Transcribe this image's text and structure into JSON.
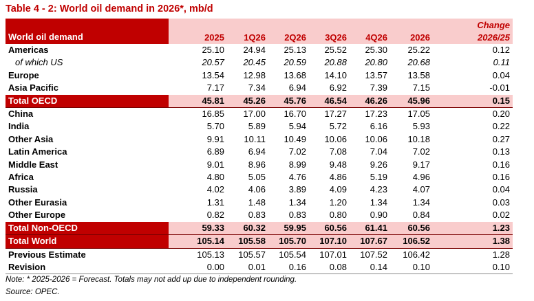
{
  "title": "Table 4 - 2: World oil demand in 2026*, mb/d",
  "table": {
    "header": [
      "World oil demand",
      "2025",
      "1Q26",
      "2Q26",
      "3Q26",
      "4Q26",
      "2026"
    ],
    "change_header": [
      "Change",
      "2026/25"
    ],
    "rows": [
      {
        "label": "Americas",
        "values": [
          "25.10",
          "24.94",
          "25.13",
          "25.52",
          "25.30",
          "25.22"
        ],
        "change": "0.12"
      },
      {
        "label": "of which US",
        "values": [
          "20.57",
          "20.45",
          "20.59",
          "20.88",
          "20.80",
          "20.68"
        ],
        "change": "0.11",
        "italic": true
      },
      {
        "label": "Europe",
        "values": [
          "13.54",
          "12.98",
          "13.68",
          "14.10",
          "13.57",
          "13.58"
        ],
        "change": "0.04"
      },
      {
        "label": "Asia Pacific",
        "values": [
          "7.17",
          "7.34",
          "6.94",
          "6.92",
          "7.39",
          "7.15"
        ],
        "change": "-0.01"
      },
      {
        "label": "Total OECD",
        "values": [
          "45.81",
          "45.26",
          "45.76",
          "46.54",
          "46.26",
          "45.96"
        ],
        "change": "0.15",
        "total": true
      },
      {
        "label": "China",
        "values": [
          "16.85",
          "17.00",
          "16.70",
          "17.27",
          "17.23",
          "17.05"
        ],
        "change": "0.20"
      },
      {
        "label": "India",
        "values": [
          "5.70",
          "5.89",
          "5.94",
          "5.72",
          "6.16",
          "5.93"
        ],
        "change": "0.22"
      },
      {
        "label": "Other Asia",
        "values": [
          "9.91",
          "10.11",
          "10.49",
          "10.06",
          "10.06",
          "10.18"
        ],
        "change": "0.27"
      },
      {
        "label": "Latin America",
        "values": [
          "6.89",
          "6.94",
          "7.02",
          "7.08",
          "7.04",
          "7.02"
        ],
        "change": "0.13"
      },
      {
        "label": "Middle East",
        "values": [
          "9.01",
          "8.96",
          "8.99",
          "9.48",
          "9.26",
          "9.17"
        ],
        "change": "0.16"
      },
      {
        "label": "Africa",
        "values": [
          "4.80",
          "5.05",
          "4.76",
          "4.86",
          "5.19",
          "4.96"
        ],
        "change": "0.16"
      },
      {
        "label": "Russia",
        "values": [
          "4.02",
          "4.06",
          "3.89",
          "4.09",
          "4.23",
          "4.07"
        ],
        "change": "0.04"
      },
      {
        "label": "Other Eurasia",
        "values": [
          "1.31",
          "1.48",
          "1.34",
          "1.20",
          "1.34",
          "1.34"
        ],
        "change": "0.03"
      },
      {
        "label": "Other Europe",
        "values": [
          "0.82",
          "0.83",
          "0.83",
          "0.80",
          "0.90",
          "0.84"
        ],
        "change": "0.02"
      },
      {
        "label": "Total Non-OECD",
        "values": [
          "59.33",
          "60.32",
          "59.95",
          "60.56",
          "61.41",
          "60.56"
        ],
        "change": "1.23",
        "total": true
      },
      {
        "label": "Total World",
        "values": [
          "105.14",
          "105.58",
          "105.70",
          "107.10",
          "107.67",
          "106.52"
        ],
        "change": "1.38",
        "total": true
      },
      {
        "label": "Previous Estimate",
        "values": [
          "105.13",
          "105.57",
          "105.54",
          "107.01",
          "107.52",
          "106.42"
        ],
        "change": "1.28"
      },
      {
        "label": "Revision",
        "values": [
          "0.00",
          "0.01",
          "0.16",
          "0.08",
          "0.14",
          "0.10"
        ],
        "change": "0.10"
      }
    ]
  },
  "notes": [
    "Note: * 2025-2026 = Forecast. Totals may not add up due to independent rounding.",
    "Source: OPEC."
  ]
}
